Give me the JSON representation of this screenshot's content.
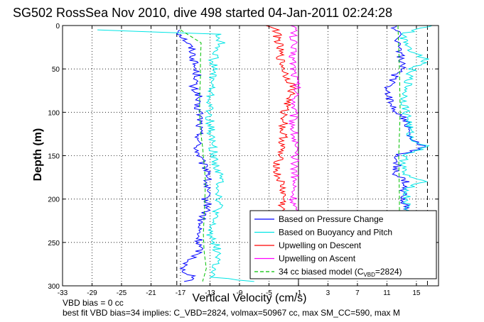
{
  "chart_data": {
    "type": "line",
    "title": "SG502 RossSea Nov 2010, dive 498 started 04-Jan-2011 02:24:28",
    "xlabel": "Vertical Velocity (cm/s)",
    "ylabel": "Depth (m)",
    "xlim": [
      -33,
      18
    ],
    "ylim": [
      300,
      0
    ],
    "y_reversed": true,
    "grid": true,
    "legend_position": "bottom-right",
    "x_ticks": [
      -33,
      -29,
      -25,
      -21,
      -17,
      -13,
      -9,
      -5,
      -1,
      3,
      7,
      11,
      15
    ],
    "x_tick_labels": [
      "-33",
      "-29",
      "-25",
      "-21",
      "-17",
      "-13",
      "-9",
      "-5",
      "-1",
      "3",
      "7",
      "11",
      "15"
    ],
    "y_ticks": [
      0,
      50,
      100,
      150,
      200,
      250,
      300
    ],
    "y_tick_labels": [
      "0",
      "50",
      "100",
      "150",
      "200",
      "250",
      "300"
    ],
    "reference_lines": [
      {
        "x": -17.5,
        "style": "dashed",
        "color": "#000000"
      },
      {
        "x": -1,
        "style": "solid",
        "color": "#000000"
      },
      {
        "x": 16.5,
        "style": "dashed",
        "color": "#000000"
      }
    ],
    "series": [
      {
        "name": "Based on Pressure Change",
        "color": "#0000ff",
        "style": "solid",
        "y": [
          5,
          10,
          20,
          30,
          40,
          50,
          60,
          70,
          80,
          90,
          100,
          110,
          120,
          130,
          140,
          150,
          160,
          170,
          180,
          190,
          200,
          210,
          220,
          230,
          240,
          250,
          260,
          270,
          280,
          290,
          295
        ],
        "x": [
          -17,
          -17,
          -16,
          -15.3,
          -15.2,
          -15,
          -14.6,
          -15.5,
          -14.5,
          -15,
          -14.4,
          -14.3,
          -14.5,
          -14.4,
          -14.8,
          -14.5,
          -14,
          -13,
          -13.5,
          -13.5,
          -13.6,
          -13.2,
          -14,
          -14.5,
          -14.6,
          -14.5,
          -14.4,
          -15.5,
          -17,
          -15,
          -16.5
        ]
      },
      {
        "name": "Based on Buoyancy and Pitch",
        "color": "#00e5e5",
        "style": "solid",
        "y": [
          5,
          10,
          20,
          30,
          40,
          50,
          60,
          70,
          80,
          90,
          100,
          110,
          120,
          130,
          140,
          150,
          160,
          170,
          180,
          190,
          200,
          210,
          220,
          230,
          240,
          250,
          260,
          270,
          280,
          290,
          295
        ],
        "x": [
          -28,
          -12,
          -11.5,
          -12,
          -12.6,
          -12.5,
          -12.6,
          -12.8,
          -13,
          -13,
          -13.2,
          -13,
          -12.9,
          -12.8,
          -12.6,
          -12.5,
          -12.2,
          -11.8,
          -11.5,
          -11.8,
          -11.7,
          -11.8,
          -12.5,
          -12.8,
          -13,
          -12.3,
          -12,
          -11.8,
          -12.6,
          -13,
          -7
        ]
      },
      {
        "name": "Upwelling on Descent",
        "color": "#ff0000",
        "style": "solid",
        "y": [
          0,
          5,
          20,
          40,
          60,
          70,
          80,
          90,
          100,
          110,
          120,
          130,
          140,
          150,
          160,
          170,
          180,
          190,
          200,
          210,
          215
        ],
        "x": [
          -5,
          -4,
          -3.7,
          -3.4,
          -2.5,
          -1.7,
          -2,
          -2.5,
          -3,
          -2.8,
          -3.2,
          -3,
          -3.3,
          -3.6,
          -3.8,
          -4,
          -3.4,
          -3.1,
          -3,
          -3.3,
          -3.2
        ]
      },
      {
        "name": "Upwelling on Ascent",
        "color": "#ff00ff",
        "style": "solid",
        "y": [
          0,
          10,
          30,
          50,
          70,
          90,
          110,
          130,
          150,
          170,
          190,
          210,
          215
        ],
        "x": [
          -1.5,
          -1.7,
          -1.8,
          -1.6,
          -1.2,
          -1.5,
          -1.7,
          -1.5,
          -1.6,
          -1.4,
          -1.7,
          -1.6,
          -1.6
        ]
      },
      {
        "name": "34 cc biased model (CVBD=2824)",
        "color": "#00c000",
        "style": "dashed",
        "y": [
          5,
          20,
          40,
          60,
          80,
          100,
          120,
          140,
          160,
          180,
          200,
          220,
          240,
          260,
          280,
          295
        ],
        "x": [
          -17,
          -14.2,
          -14.3,
          -14.3,
          -14.4,
          -14.4,
          -14.3,
          -14,
          -13.8,
          -13.6,
          -13.7,
          -13.8,
          -13.9,
          -13.8,
          -13.5,
          -14
        ]
      },
      {
        "name": "",
        "color": "#0000ff",
        "style": "solid",
        "y": [
          0,
          10,
          30,
          50,
          60,
          70,
          80,
          90,
          100,
          110,
          130,
          140,
          150,
          160,
          170,
          180,
          190,
          200,
          210,
          215
        ],
        "x": [
          12,
          12.5,
          12.8,
          13,
          11.8,
          11.3,
          11.2,
          11.5,
          12.5,
          13.6,
          14,
          16.2,
          12.2,
          12.5,
          12,
          13.5,
          13,
          13.4,
          13.6,
          13.5
        ]
      },
      {
        "name": "",
        "color": "#00e5e5",
        "style": "solid",
        "y": [
          0,
          10,
          30,
          40,
          50,
          60,
          70,
          80,
          90,
          100,
          110,
          120,
          130,
          140,
          150,
          160,
          170,
          180,
          190,
          200,
          210,
          215
        ],
        "x": [
          17,
          13,
          14.5,
          16.5,
          14.5,
          14,
          13.8,
          13.4,
          13.4,
          13.6,
          14,
          14,
          14.2,
          16.5,
          13.2,
          13.4,
          13,
          15.8,
          13.5,
          13.7,
          13.6,
          13.6
        ]
      },
      {
        "name": "",
        "color": "#00c000",
        "style": "dashed",
        "y": [
          0,
          50,
          100,
          150,
          200,
          215
        ],
        "x": [
          12.5,
          12.7,
          12.8,
          12.6,
          12.7,
          12.7
        ]
      }
    ],
    "legend_entries": [
      {
        "label": "Based on Pressure Change",
        "color": "#0000ff",
        "style": "solid"
      },
      {
        "label": "Based on Buoyancy and Pitch",
        "color": "#00e5e5",
        "style": "solid"
      },
      {
        "label": "Upwelling on Descent",
        "color": "#ff0000",
        "style": "solid"
      },
      {
        "label": "Upwelling on Ascent",
        "color": "#ff00ff",
        "style": "solid"
      },
      {
        "label": "34 cc biased model (C",
        "subscript": "VBD",
        "suffix": "=2824)",
        "color": "#00c000",
        "style": "dashed"
      }
    ]
  },
  "footer": {
    "line1": "VBD bias = 0 cc",
    "line2": "best fit VBD bias=34 implies: C_VBD=2824, volmax=50967 cc, max SM_CC=590, max M"
  }
}
